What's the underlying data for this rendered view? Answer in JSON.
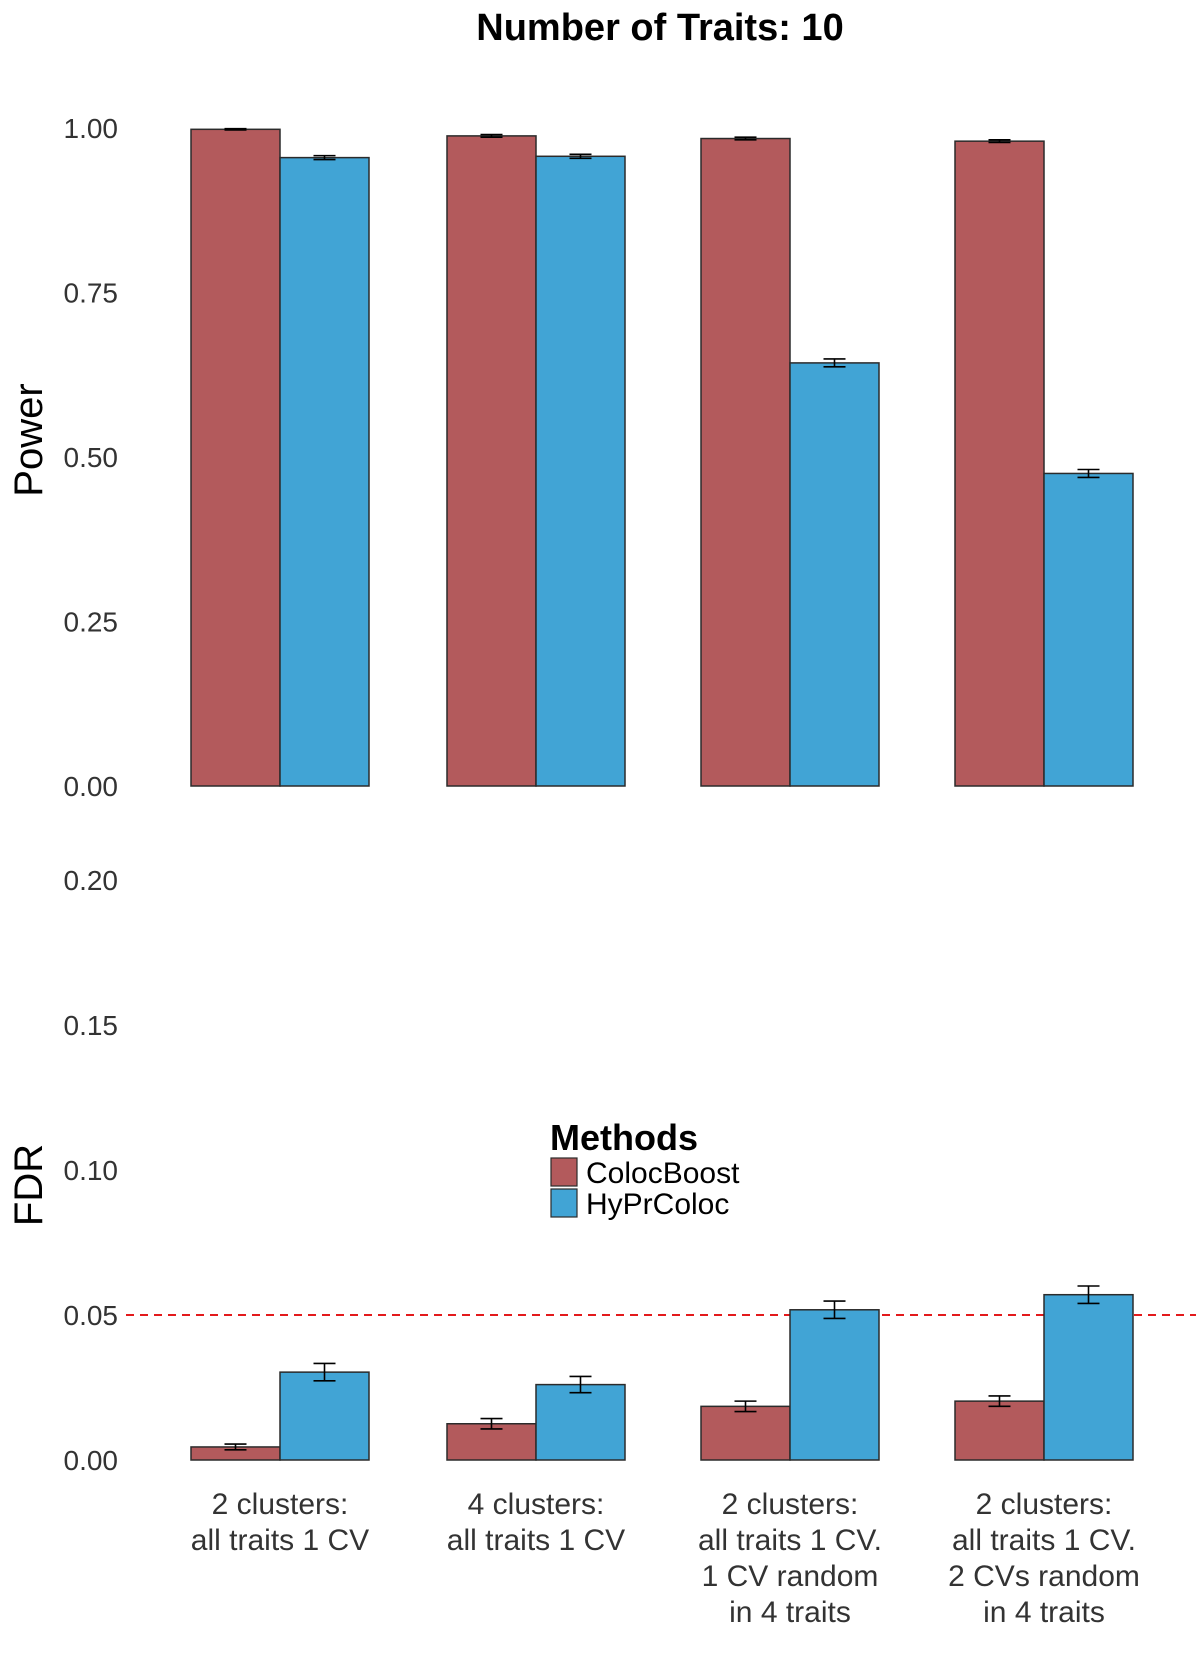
{
  "chart_data": {
    "title": "Number of Traits: 10",
    "type": "bar",
    "categories": [
      [
        "2 clusters:",
        "all traits 1 CV"
      ],
      [
        "4 clusters:",
        "all traits 1 CV"
      ],
      [
        "2 clusters:",
        "all traits 1 CV.",
        "1 CV random",
        "in 4 traits"
      ],
      [
        "2 clusters:",
        "all traits 1 CV.",
        "2 CVs random",
        "in 4 traits"
      ]
    ],
    "legend": {
      "title": "Methods",
      "placement": "center",
      "entries": [
        "ColocBoost",
        "HyPrColoc"
      ]
    },
    "colors": {
      "ColocBoost": "#b35a5c",
      "HyPrColoc": "#41a4d5",
      "threshold": "#e31a1c"
    },
    "panels": [
      {
        "ylabel": "Power",
        "ylim": [
          0,
          1.0
        ],
        "yticks": [
          "0.00",
          "0.25",
          "0.50",
          "0.75",
          "1.00"
        ],
        "series": [
          {
            "name": "ColocBoost",
            "values": [
              0.998,
              0.988,
              0.984,
              0.98
            ],
            "errors": [
              0.001,
              0.002,
              0.002,
              0.002
            ]
          },
          {
            "name": "HyPrColoc",
            "values": [
              0.955,
              0.957,
              0.643,
              0.475
            ],
            "errors": [
              0.003,
              0.003,
              0.006,
              0.006
            ]
          }
        ]
      },
      {
        "ylabel": "FDR",
        "ylim": [
          0,
          0.2
        ],
        "yticks": [
          "0.00",
          "0.05",
          "0.10",
          "0.15",
          "0.20"
        ],
        "hline": 0.05,
        "series": [
          {
            "name": "ColocBoost",
            "values": [
              0.0045,
              0.0125,
              0.0185,
              0.0203
            ],
            "errors": [
              0.001,
              0.0018,
              0.0018,
              0.0018
            ]
          },
          {
            "name": "HyPrColoc",
            "values": [
              0.0303,
              0.026,
              0.0518,
              0.057
            ],
            "errors": [
              0.003,
              0.0028,
              0.003,
              0.003
            ]
          }
        ]
      }
    ]
  }
}
